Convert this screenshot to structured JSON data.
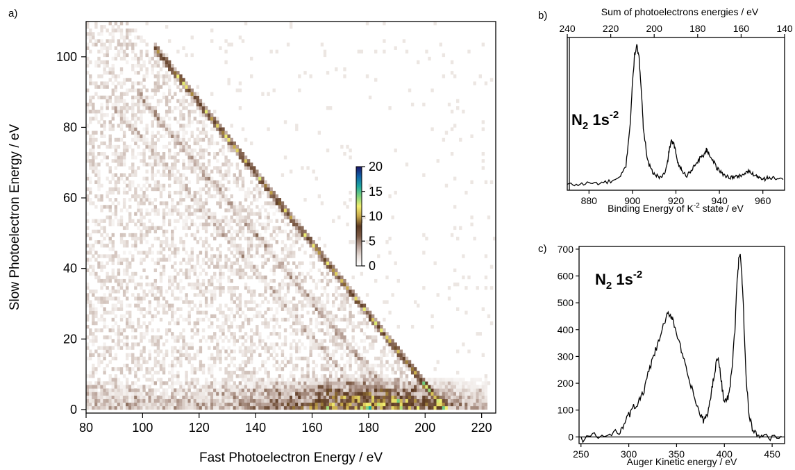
{
  "chart_data": [
    {
      "panel_label": "a)",
      "type": "heatmap",
      "xlabel": "Fast Photoelectron Energy / eV",
      "ylabel": "Slow Photoelectron Energy / eV",
      "xlim": [
        80,
        225
      ],
      "ylim": [
        -1,
        110
      ],
      "xticks": [
        80,
        100,
        120,
        140,
        160,
        180,
        200,
        220
      ],
      "yticks": [
        0,
        20,
        40,
        60,
        80,
        100
      ],
      "colorbar": {
        "range": [
          0,
          20
        ],
        "ticks": [
          0,
          5,
          10,
          15,
          20
        ],
        "colors": [
          "#ffffff",
          "#e6ddd8",
          "#b7a096",
          "#7b5a45",
          "#5c3a22",
          "#c7a84a",
          "#f1ee70",
          "#7fd27b",
          "#1ea79f",
          "#0f62a8",
          "#1b1466"
        ]
      },
      "features": [
        {
          "name": "main diagonal band",
          "x_start": 106,
          "y_start": 101,
          "x_end": 206,
          "y_end": 1,
          "peak_count": 20
        },
        {
          "name": "second diagonal band",
          "x_start": 100,
          "y_start": 88,
          "x_end": 190,
          "y_end": 2,
          "peak_count": 6
        },
        {
          "name": "third diagonal band",
          "x_start": 92,
          "y_start": 84,
          "x_end": 180,
          "y_end": 2,
          "peak_count": 4
        },
        {
          "name": "low slow-electron region",
          "x_start": 80,
          "x_end": 222,
          "y_max": 10,
          "peak_count": 18
        }
      ]
    },
    {
      "panel_label": "b)",
      "type": "line",
      "xlabel": "Binding Energy of K",
      "xlabel_sup": "-2",
      "xlabel_suffix": " state / eV",
      "top_xlabel": "Sum of photoelectrons energies / eV",
      "annotation": {
        "base": "N",
        "sub": "2",
        "mid": " 1s",
        "sup": "-2"
      },
      "xlim": [
        870,
        970
      ],
      "xticks": [
        880,
        900,
        920,
        940,
        960
      ],
      "top_xlim": [
        240,
        140
      ],
      "top_xticks": [
        240,
        220,
        200,
        180,
        160,
        140
      ],
      "ylim": [
        0,
        1.0
      ],
      "series": [
        {
          "x": [
            870,
            875,
            880,
            885,
            890,
            894,
            897,
            899,
            900,
            901,
            902,
            903,
            904,
            905,
            907,
            909,
            911,
            913,
            915,
            916,
            917,
            918,
            919,
            920,
            921,
            923,
            925,
            927,
            929,
            931,
            933,
            934,
            935,
            937,
            939,
            941,
            943,
            945,
            947,
            949,
            951,
            953,
            955,
            957,
            959,
            961,
            963,
            966,
            970
          ],
          "y": [
            0.02,
            0.02,
            0.03,
            0.03,
            0.04,
            0.06,
            0.15,
            0.45,
            0.72,
            0.92,
            0.98,
            0.9,
            0.7,
            0.42,
            0.18,
            0.11,
            0.08,
            0.07,
            0.1,
            0.16,
            0.27,
            0.32,
            0.3,
            0.24,
            0.17,
            0.11,
            0.08,
            0.12,
            0.16,
            0.2,
            0.23,
            0.26,
            0.24,
            0.19,
            0.13,
            0.1,
            0.08,
            0.07,
            0.07,
            0.08,
            0.09,
            0.11,
            0.1,
            0.08,
            0.07,
            0.06,
            0.07,
            0.06,
            0.05
          ]
        }
      ]
    },
    {
      "panel_label": "c)",
      "type": "line",
      "xlabel": "Auger Kinetic energy / eV",
      "annotation": {
        "base": "N",
        "sub": "2",
        "mid": " 1s",
        "sup": "-2"
      },
      "xlim": [
        248,
        463
      ],
      "xticks": [
        250,
        300,
        350,
        400,
        450
      ],
      "ylim": [
        -25,
        710
      ],
      "yticks": [
        0,
        100,
        200,
        300,
        400,
        500,
        600,
        700
      ],
      "series": [
        {
          "x": [
            250,
            260,
            270,
            280,
            290,
            295,
            300,
            305,
            310,
            315,
            320,
            325,
            330,
            335,
            340,
            343,
            346,
            350,
            355,
            360,
            365,
            370,
            375,
            378,
            381,
            384,
            387,
            390,
            393,
            396,
            399,
            402,
            405,
            408,
            411,
            413,
            415,
            417,
            419,
            421,
            423,
            426,
            430,
            435,
            440,
            450,
            462
          ],
          "y": [
            -10,
            5,
            0,
            5,
            20,
            50,
            80,
            110,
            130,
            160,
            230,
            290,
            340,
            400,
            450,
            460,
            440,
            390,
            320,
            250,
            190,
            130,
            80,
            60,
            75,
            110,
            180,
            250,
            300,
            230,
            150,
            130,
            160,
            250,
            400,
            560,
            660,
            670,
            560,
            380,
            200,
            80,
            25,
            5,
            0,
            0,
            0
          ]
        }
      ]
    }
  ]
}
